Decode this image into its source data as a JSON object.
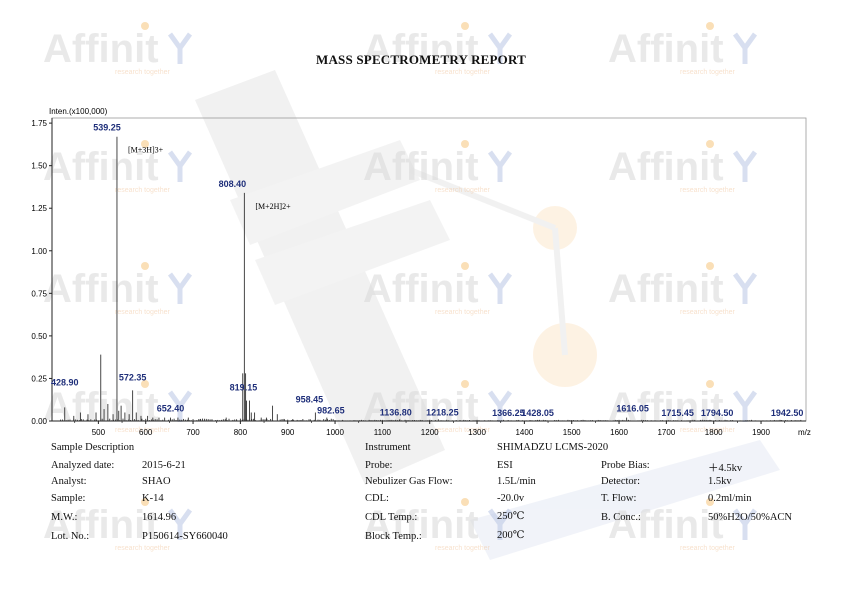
{
  "report": {
    "title": "MASS SPECTROMETRY REPORT",
    "watermark_text": "Affinit",
    "watermark_tag": "research together"
  },
  "chart_data": {
    "type": "line",
    "ylabel": "Inten.(x100,000)",
    "xlabel": "m/z",
    "xlim": [
      402,
      1995
    ],
    "ylim": [
      0,
      1.78
    ],
    "x_ticks": [
      500,
      600,
      700,
      800,
      900,
      1000,
      1100,
      1200,
      1300,
      1400,
      1500,
      1600,
      1700,
      1800,
      1900
    ],
    "y_ticks": [
      0.0,
      0.25,
      0.5,
      0.75,
      1.0,
      1.25,
      1.5,
      1.75
    ],
    "x_tick_labels": [
      "500",
      "600",
      "700",
      "800",
      "900",
      "1000",
      "1100",
      "1200",
      "1300",
      "1400",
      "1500",
      "1600",
      "1700",
      "1800",
      "1900"
    ],
    "y_tick_labels": [
      "0.00",
      "0.25",
      "0.50",
      "0.75",
      "1.00",
      "1.25",
      "1.50",
      "1.75"
    ],
    "labeled_peaks": [
      {
        "mz": 428.9,
        "label": "428.90",
        "intensity": 0.08
      },
      {
        "mz": 539.25,
        "label": "539.25",
        "intensity": 1.67
      },
      {
        "mz": 572.35,
        "label": "572.35",
        "intensity": 0.18
      },
      {
        "mz": 652.4,
        "label": "652.40",
        "intensity": 0.02
      },
      {
        "mz": 808.4,
        "label": "808.40",
        "intensity": 1.34
      },
      {
        "mz": 819.15,
        "label": "819.15",
        "intensity": 0.12
      },
      {
        "mz": 958.45,
        "label": "958.45",
        "intensity": 0.05
      },
      {
        "mz": 982.65,
        "label": "982.65",
        "intensity": 0.02
      },
      {
        "mz": 1136.8,
        "label": "1136.80",
        "intensity": 0.01
      },
      {
        "mz": 1218.25,
        "label": "1218.25",
        "intensity": 0.01
      },
      {
        "mz": 1366.25,
        "label": "1366.25",
        "intensity": 0.005
      },
      {
        "mz": 1428.05,
        "label": "1428.05",
        "intensity": 0.005
      },
      {
        "mz": 1616.05,
        "label": "1616.05",
        "intensity": 0.02
      },
      {
        "mz": 1715.45,
        "label": "1715.45",
        "intensity": 0.005
      },
      {
        "mz": 1794.5,
        "label": "1794.50",
        "intensity": 0.005
      },
      {
        "mz": 1942.5,
        "label": "1942.50",
        "intensity": 0.005
      }
    ],
    "annotations": [
      {
        "text": "[M+3H]3+",
        "mz": 539.25
      },
      {
        "text": "[M+2H]2+",
        "mz": 808.4
      }
    ],
    "minor_peaks": [
      [
        448,
        0.03
      ],
      [
        462,
        0.05
      ],
      [
        478,
        0.04
      ],
      [
        495,
        0.05
      ],
      [
        505,
        0.39
      ],
      [
        512,
        0.07
      ],
      [
        520,
        0.1
      ],
      [
        531,
        0.04
      ],
      [
        543,
        0.06
      ],
      [
        548,
        0.09
      ],
      [
        556,
        0.05
      ],
      [
        565,
        0.04
      ],
      [
        580,
        0.05
      ],
      [
        590,
        0.03
      ],
      [
        604,
        0.03
      ],
      [
        615,
        0.02
      ],
      [
        628,
        0.02
      ],
      [
        640,
        0.02
      ],
      [
        668,
        0.02
      ],
      [
        690,
        0.02
      ],
      [
        715,
        0.01
      ],
      [
        740,
        0.01
      ],
      [
        770,
        0.02
      ],
      [
        792,
        0.01
      ],
      [
        805,
        0.28
      ],
      [
        811,
        0.28
      ],
      [
        813,
        0.12
      ],
      [
        823,
        0.05
      ],
      [
        830,
        0.05
      ],
      [
        844,
        0.02
      ],
      [
        855,
        0.02
      ],
      [
        868,
        0.09
      ],
      [
        878,
        0.04
      ],
      [
        893,
        0.01
      ],
      [
        910,
        0.01
      ],
      [
        945,
        0.01
      ]
    ]
  },
  "info": {
    "sample_description": "Sample Description",
    "instrument_label": "Instrument",
    "instrument_value": "SHIMADZU LCMS-2020",
    "left": [
      {
        "label": "Analyzed date:",
        "value": "2015-6-21"
      },
      {
        "label": "Analyst:",
        "value": "SHAO"
      },
      {
        "label": "Sample:",
        "value": "K-14"
      },
      {
        "label": "M.W.:",
        "value": "1614.96"
      },
      {
        "label": "Lot. No.:",
        "value": "P150614-SY660040"
      }
    ],
    "middle": [
      {
        "label": "Probe:",
        "value": "ESI"
      },
      {
        "label": "Nebulizer Gas Flow:",
        "value": "1.5L/min"
      },
      {
        "label": "CDL:",
        "value": "-20.0v"
      },
      {
        "label": "CDL Temp.:",
        "value": "250℃"
      },
      {
        "label": "Block Temp.:",
        "value": "200℃"
      }
    ],
    "right": [
      {
        "label": "Probe Bias:",
        "value": "＋4.5kv"
      },
      {
        "label": "Detector:",
        "value": "1.5kv"
      },
      {
        "label": "T. Flow:",
        "value": "0.2ml/min"
      },
      {
        "label": "B. Conc.:",
        "value": "50%H2O/50%ACN"
      }
    ]
  }
}
